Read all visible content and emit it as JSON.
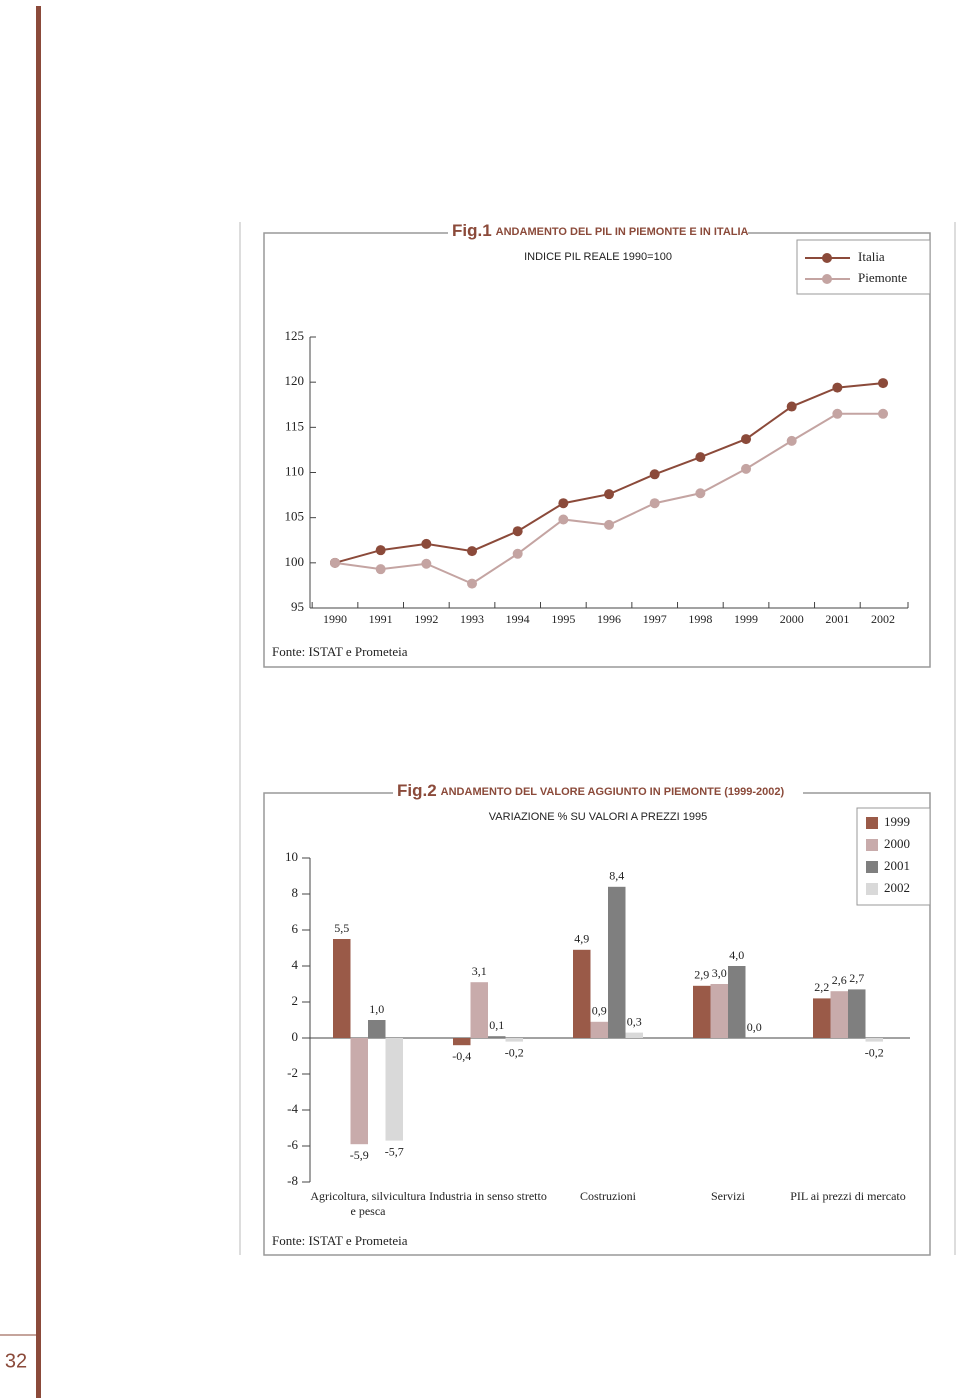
{
  "page_number": "32",
  "chart_data": [
    {
      "type": "line",
      "fig_label": "Fig.1",
      "title": "ANDAMENTO DEL PIL IN PIEMONTE E IN ITALIA",
      "subtitle": "INDICE PIL REALE 1990=100",
      "source": "Fonte: ISTAT e Prometeia",
      "categories": [
        "1990",
        "1991",
        "1992",
        "1993",
        "1994",
        "1995",
        "1996",
        "1997",
        "1998",
        "1999",
        "2000",
        "2001",
        "2002"
      ],
      "series": [
        {
          "name": "Italia",
          "color": "#8b4a3a",
          "values": [
            100,
            101.4,
            102.1,
            101.3,
            103.5,
            106.6,
            107.6,
            109.8,
            111.7,
            113.7,
            117.3,
            119.4,
            119.9
          ]
        },
        {
          "name": "Piemonte",
          "color": "#c4a4a2",
          "values": [
            100,
            99.3,
            99.9,
            97.7,
            101.0,
            104.8,
            104.2,
            106.6,
            107.7,
            110.4,
            113.5,
            116.5,
            116.5
          ]
        }
      ],
      "ylim": [
        95,
        125
      ],
      "yticks": [
        95,
        100,
        105,
        110,
        115,
        120,
        125
      ]
    },
    {
      "type": "bar",
      "fig_label": "Fig.2",
      "title": "ANDAMENTO DEL VALORE AGGIUNTO IN PIEMONTE (1999-2002)",
      "subtitle": "VARIAZIONE % SU VALORI A PREZZI 1995",
      "source": "Fonte: ISTAT e Prometeia",
      "categories": [
        "Agricoltura, silvicultura e pesca",
        "Industria in senso stretto",
        "Costruzioni",
        "Servizi",
        "PIL ai prezzi di mercato"
      ],
      "series": [
        {
          "name": "1999",
          "color": "#9a5a48",
          "values": [
            5.5,
            -0.4,
            4.9,
            2.9,
            2.2
          ],
          "value_labels": [
            "5,5",
            "-0,4",
            "4,9",
            "2,9",
            "2,2"
          ]
        },
        {
          "name": "2000",
          "color": "#c8abab",
          "values": [
            -5.9,
            3.1,
            0.9,
            3.0,
            2.6
          ],
          "value_labels": [
            "-5,9",
            "3,1",
            "0,9",
            "3,0",
            "2,6"
          ]
        },
        {
          "name": "2001",
          "color": "#7f7f7f",
          "values": [
            1.0,
            0.1,
            8.4,
            4.0,
            2.7
          ],
          "value_labels": [
            "1,0",
            "0,1",
            "8,4",
            "4,0",
            "2,7"
          ]
        },
        {
          "name": "2002",
          "color": "#d9d9d9",
          "values": [
            -5.7,
            -0.2,
            0.3,
            0.0,
            -0.2
          ],
          "value_labels": [
            "-5,7",
            "-0,2",
            "0,3",
            "0,0",
            "-0,2"
          ]
        }
      ],
      "ylim": [
        -8,
        10
      ],
      "yticks": [
        -8,
        -6,
        -4,
        -2,
        0,
        2,
        4,
        6,
        8,
        10
      ]
    }
  ]
}
